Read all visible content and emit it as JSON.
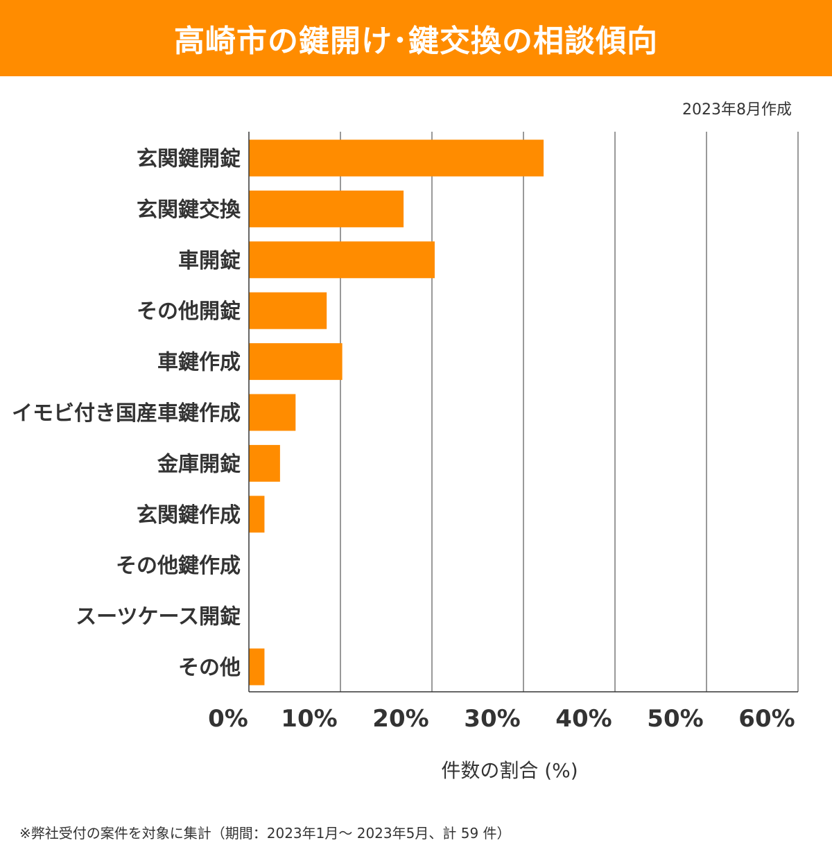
{
  "header": {
    "title": "高崎市の鍵開け･鍵交換の相談傾向"
  },
  "date_note": "2023年8月作成",
  "footnote": "※弊社受付の案件を対象に集計（期間：2023年1月～ 2023年5月、計 59 件）",
  "colors": {
    "accent": "#ff8c00",
    "bar": "#ff8c00",
    "grid": "#333333"
  },
  "chart_data": {
    "type": "bar",
    "orientation": "horizontal",
    "title": "高崎市の鍵開け･鍵交換の相談傾向",
    "xlabel": "件数の割合 (%)",
    "ylabel": "",
    "xlim": [
      0,
      60
    ],
    "grid": true,
    "categories": [
      "玄関鍵開錠",
      "玄関鍵交換",
      "車開錠",
      "その他開錠",
      "車鍵作成",
      "イモビ付き国産車鍵作成",
      "金庫開錠",
      "玄関鍵作成",
      "その他鍵作成",
      "スーツケース開錠",
      "その他"
    ],
    "values": [
      32.2,
      16.9,
      20.3,
      8.5,
      10.2,
      5.1,
      3.4,
      1.7,
      0,
      0,
      1.7
    ],
    "tick_labels": [
      "0%",
      "10%",
      "20%",
      "30%",
      "40%",
      "50%",
      "60%"
    ],
    "ticks": [
      0,
      10,
      20,
      30,
      40,
      50,
      60
    ]
  }
}
